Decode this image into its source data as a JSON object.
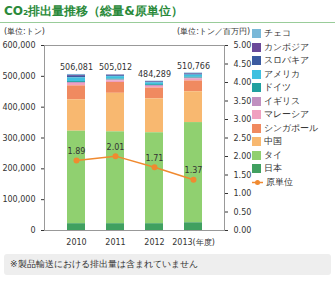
{
  "chart_data": {
    "type": "bar",
    "stacked": true,
    "title": "CO₂排出量推移（総量&原単位）",
    "y_label": "(単位:トン)",
    "y2_label": "(単位:トン／百万円)",
    "note": "※製品輸送における排出量は含まれていません",
    "categories": [
      "2010",
      "2011",
      "2012",
      "2013(年度)"
    ],
    "ylim": [
      0,
      600000
    ],
    "yticks": [
      0,
      {
        "value": 100000,
        "label": "100,000"
      },
      {
        "value": 200000,
        "label": "200,000"
      },
      {
        "value": 300000,
        "label": "300,000"
      },
      {
        "value": 400000,
        "label": "400,000"
      },
      {
        "value": 500000,
        "label": "500,000"
      },
      {
        "value": 600000,
        "label": "600,000"
      }
    ],
    "y2lim": [
      0,
      5
    ],
    "y2ticks": [
      {
        "value": 0,
        "label": "0.00"
      },
      {
        "value": 0.5,
        "label": "0.50"
      },
      {
        "value": 1,
        "label": "1.00"
      },
      {
        "value": 1.5,
        "label": "1.50"
      },
      {
        "value": 2,
        "label": "2.00"
      },
      {
        "value": 2.5,
        "label": "2.50"
      },
      {
        "value": 3,
        "label": "3.00"
      },
      {
        "value": 3.5,
        "label": "3.50"
      },
      {
        "value": 4,
        "label": "4.00"
      },
      {
        "value": 4.5,
        "label": "4.50"
      },
      {
        "value": 5,
        "label": "5.00"
      }
    ],
    "grid": false,
    "legend": "right",
    "totals": {
      "values": [
        506081,
        505012,
        484289,
        510766
      ],
      "value_labels": [
        "506,081",
        "505,012",
        "484,289",
        "510,766"
      ]
    },
    "series": [
      {
        "name": "チェコ",
        "color": "#7ab8d8",
        "values": [
          3081,
          1012,
          1000,
          1766
        ]
      },
      {
        "name": "カンボジア",
        "color": "#6a4a9a",
        "values": [
          3000,
          2000,
          1789,
          2000
        ]
      },
      {
        "name": "スロバキア",
        "color": "#3a5aa0",
        "values": [
          5000,
          3000,
          2500,
          3000
        ]
      },
      {
        "name": "アメリカ",
        "color": "#40c0e0",
        "values": [
          12000,
          8000,
          6000,
          7000
        ]
      },
      {
        "name": "ドイツ",
        "color": "#20a0a0",
        "values": [
          3000,
          3000,
          3000,
          3000
        ]
      },
      {
        "name": "イギリス",
        "color": "#c090c0",
        "values": [
          3000,
          3000,
          3000,
          3000
        ]
      },
      {
        "name": "マレーシア",
        "color": "#f0a0c0",
        "values": [
          8000,
          5000,
          5000,
          6000
        ]
      },
      {
        "name": "シンガポール",
        "color": "#f08a60",
        "values": [
          45000,
          35000,
          35000,
          35000
        ]
      },
      {
        "name": "中国",
        "color": "#f8b870",
        "values": [
          102000,
          125000,
          110000,
          100000
        ]
      },
      {
        "name": "タイ",
        "color": "#90d070",
        "values": [
          300000,
          298000,
          295000,
          325000
        ]
      },
      {
        "name": "日本",
        "color": "#40a060",
        "values": [
          22000,
          22000,
          22000,
          25000
        ]
      },
      {
        "name": "原単位",
        "color": "#f08a30",
        "type": "line",
        "marker": "circle",
        "axis": "y2",
        "data_labels": true,
        "values": [
          1.89,
          2.01,
          1.71,
          1.37
        ]
      }
    ]
  }
}
